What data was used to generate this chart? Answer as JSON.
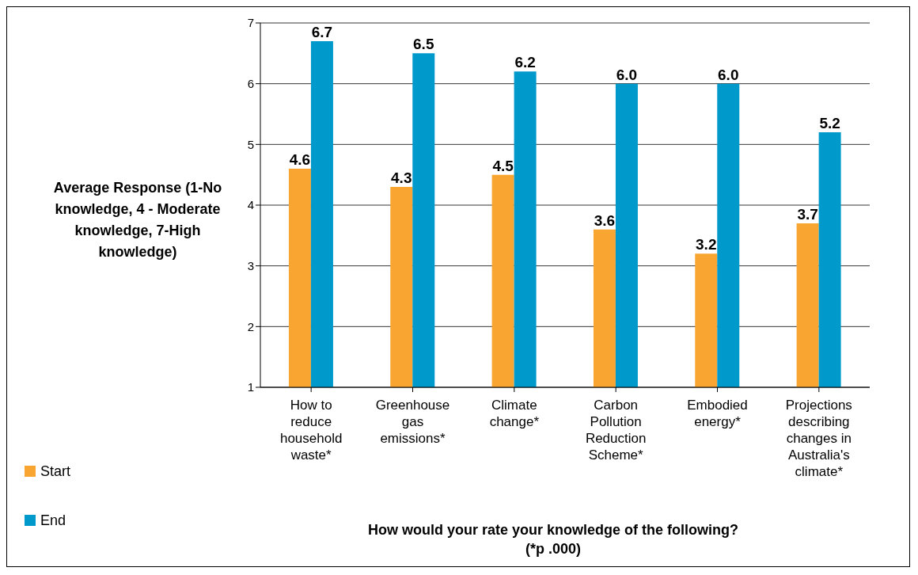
{
  "chart_data": {
    "type": "bar",
    "ylabel": "Average Response (1-No knowledge, 4 - Moderate knowledge, 7-High knowledge)",
    "xlabel": "How would your rate your knowledge of the following?\n(*p .000)",
    "categories": [
      "How to reduce household waste*",
      "Greenhouse gas emissions*",
      "Climate change*",
      "Carbon Pollution Reduction Scheme*",
      "Embodied energy*",
      "Projections describing changes in Australia's climate*"
    ],
    "series": [
      {
        "name": "Start",
        "color": "#f8a532",
        "values": [
          4.6,
          4.3,
          4.5,
          3.6,
          3.2,
          3.7
        ],
        "value_labels": [
          "4.6",
          "4.3",
          "4.5",
          "3.6",
          "3.2",
          "3.7"
        ]
      },
      {
        "name": "End",
        "color": "#0099cc",
        "values": [
          6.7,
          6.5,
          6.2,
          6.0,
          6.0,
          5.2
        ],
        "value_labels": [
          "6.7",
          "6.5",
          "6.2",
          "6.0",
          "6.0",
          "5.2"
        ]
      }
    ],
    "ylim": [
      1,
      7
    ],
    "yticks": [
      1,
      2,
      3,
      4,
      5,
      6,
      7
    ],
    "grid": "y",
    "legend": "left"
  }
}
